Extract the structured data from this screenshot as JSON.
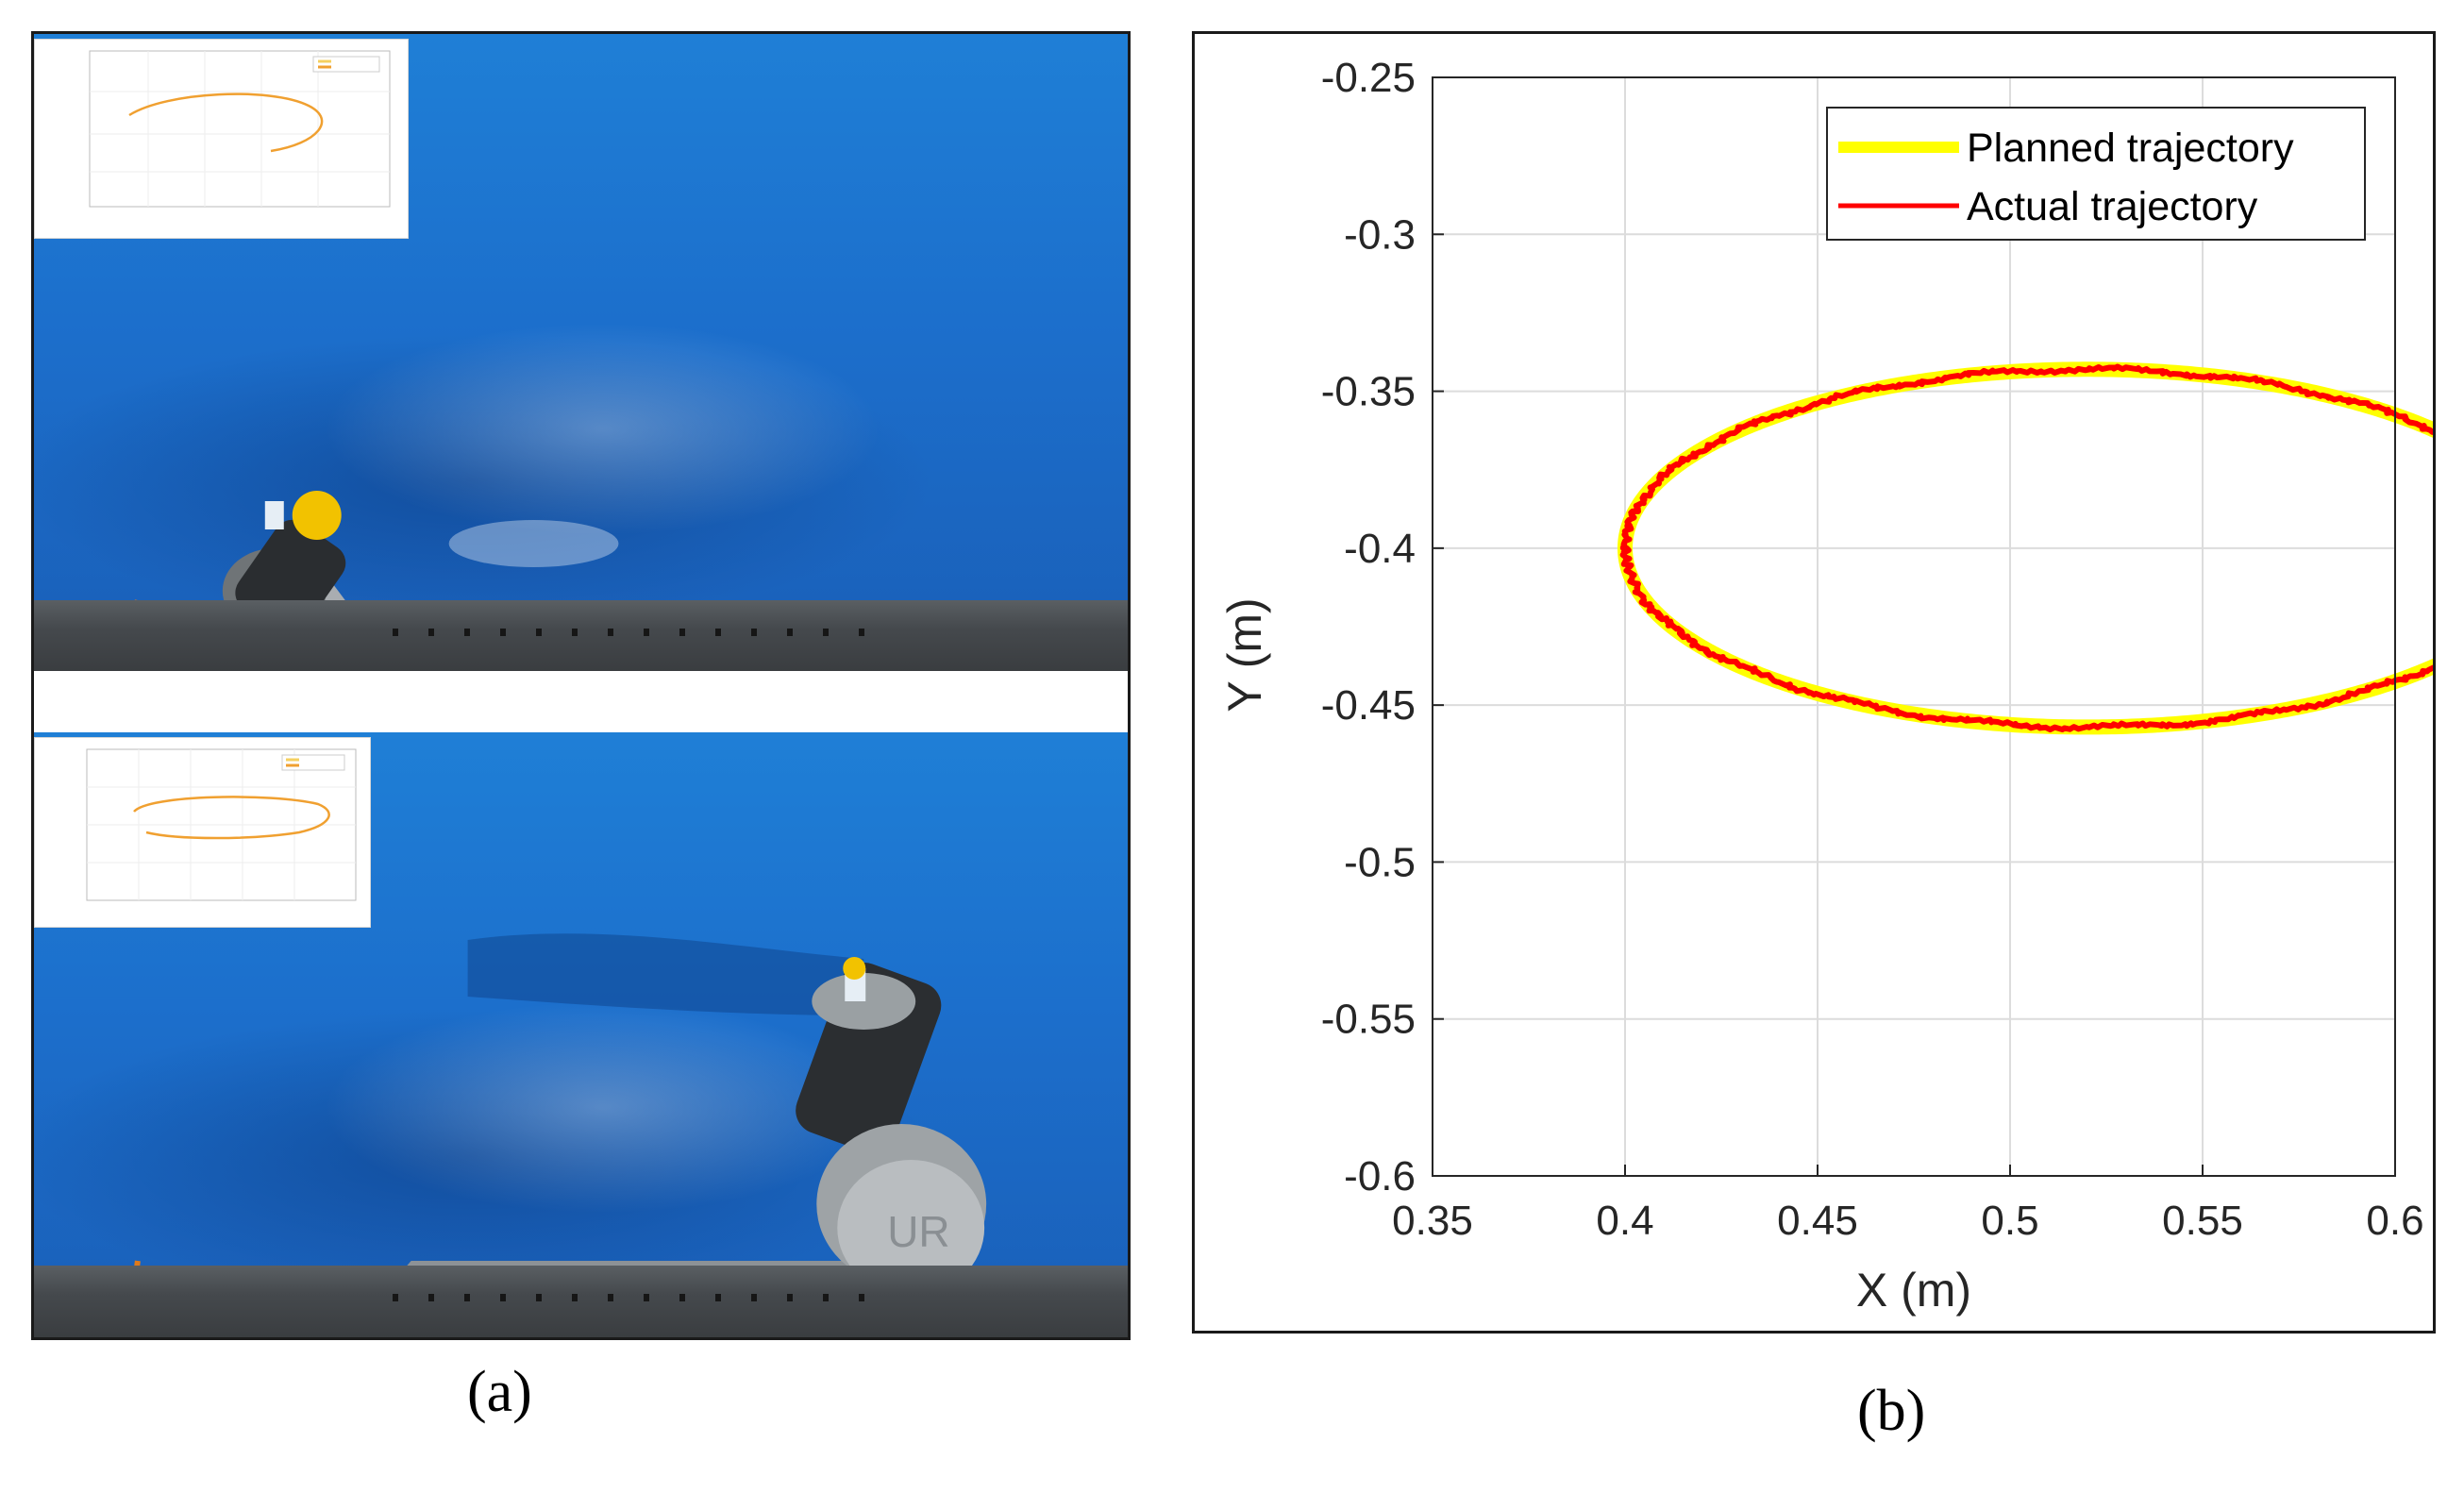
{
  "captions": {
    "a": "(a)",
    "b": "(b)"
  },
  "chart_data": {
    "type": "line",
    "xlabel": "X (m)",
    "ylabel": "Y (m)",
    "xlim": [
      0.35,
      0.6
    ],
    "ylim": [
      -0.6,
      -0.25
    ],
    "xticks": [
      0.35,
      0.4,
      0.45,
      0.5,
      0.55,
      0.6
    ],
    "xtick_labels": [
      "0.35",
      "0.4",
      "0.45",
      "0.5",
      "0.55",
      "0.6"
    ],
    "yticks": [
      -0.6,
      -0.55,
      -0.5,
      -0.45,
      -0.4,
      -0.35,
      -0.3,
      -0.25
    ],
    "ytick_labels": [
      "-0.6",
      "-0.55",
      "-0.5",
      "-0.45",
      "-0.4",
      "-0.35",
      "-0.3",
      "-0.25"
    ],
    "grid": true,
    "legend_position": "top-right",
    "series": [
      {
        "name": "Planned trajectory",
        "color": "#ffff00",
        "shape": "ellipse",
        "center_x": 0.52,
        "center_y": -0.4,
        "semi_axis_x": 0.12,
        "semi_axis_y": 0.057
      },
      {
        "name": "Actual trajectory",
        "color": "#ff0000",
        "shape": "ellipse",
        "center_x": 0.52,
        "center_y": -0.4,
        "semi_axis_x": 0.12,
        "semi_axis_y": 0.057
      }
    ]
  },
  "panel_a": {
    "insets": [
      {
        "series_color": "#f0a030"
      },
      {
        "series_color": "#f0a030"
      }
    ]
  }
}
